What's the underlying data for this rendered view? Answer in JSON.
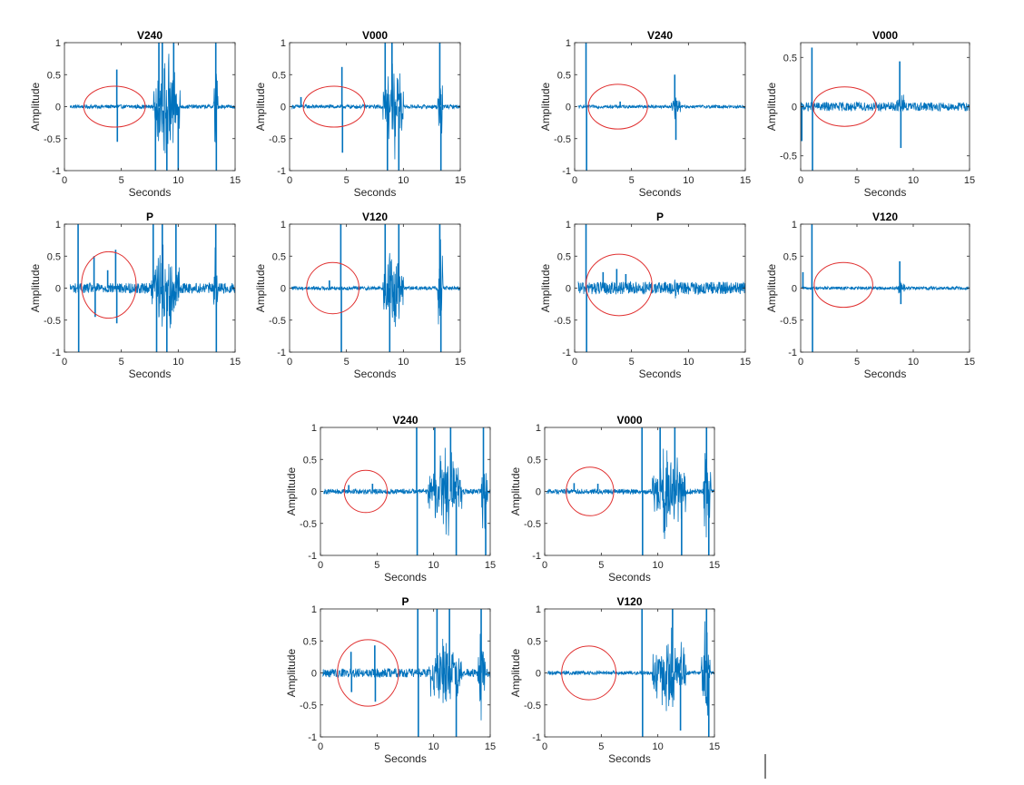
{
  "figure": {
    "wave_color": "#0072BD",
    "circle_color": "#E03030",
    "axis_color": "#262626"
  },
  "chart_data": [
    {
      "type": "line",
      "title": "V240",
      "xlabel": "Seconds",
      "ylabel": "Amplitude",
      "xlim": [
        0,
        15
      ],
      "ylim": [
        -1,
        1
      ],
      "xticks": [
        "0",
        "5",
        "10",
        "15"
      ],
      "yticks": [
        "1",
        "0.5",
        "0",
        "-0.5",
        "-1"
      ],
      "series": [
        {
          "start": 0.5,
          "end": 15,
          "base_amp": 0.03,
          "spikes": [
            [
              4.6,
              0.58
            ],
            [
              4.65,
              -0.55
            ],
            [
              8.0,
              -1
            ],
            [
              8.3,
              1
            ],
            [
              8.6,
              1
            ],
            [
              9.0,
              -1
            ],
            [
              9.6,
              1
            ],
            [
              10.0,
              -1
            ],
            [
              13.3,
              1
            ],
            [
              13.35,
              -1
            ]
          ],
          "bursts": [
            [
              7.8,
              10.2,
              1.0
            ],
            [
              13.1,
              13.5,
              1.0
            ]
          ]
        }
      ],
      "annotations": [
        {
          "type": "ellipse",
          "x": 4.4,
          "y": 0,
          "rx": 2.7,
          "ry": 0.32
        }
      ]
    },
    {
      "type": "line",
      "title": "V000",
      "xlabel": "Seconds",
      "ylabel": "Amplitude",
      "xlim": [
        0,
        15
      ],
      "ylim": [
        -1,
        1
      ],
      "xticks": [
        "0",
        "5",
        "10",
        "15"
      ],
      "yticks": [
        "1",
        "0.5",
        "0",
        "-0.5",
        "-1"
      ],
      "series": [
        {
          "start": 0.2,
          "end": 15,
          "base_amp": 0.03,
          "spikes": [
            [
              1.0,
              0.15
            ],
            [
              4.6,
              0.62
            ],
            [
              4.65,
              -0.72
            ],
            [
              8.4,
              1
            ],
            [
              8.6,
              -1
            ],
            [
              9.0,
              1
            ],
            [
              9.6,
              -1
            ],
            [
              13.2,
              1
            ],
            [
              13.3,
              -1
            ]
          ],
          "bursts": [
            [
              8.2,
              10.0,
              1.0
            ],
            [
              13.0,
              13.5,
              1.0
            ]
          ]
        }
      ],
      "annotations": [
        {
          "type": "ellipse",
          "x": 3.9,
          "y": 0,
          "rx": 2.7,
          "ry": 0.32
        }
      ]
    },
    {
      "type": "line",
      "title": "V240",
      "xlabel": "Seconds",
      "ylabel": "Amplitude",
      "xlim": [
        0,
        15
      ],
      "ylim": [
        -1,
        1
      ],
      "xticks": [
        "0",
        "5",
        "10",
        "15"
      ],
      "yticks": [
        "1",
        "0.5",
        "0",
        "-0.5",
        "-1"
      ],
      "series": [
        {
          "start": 0.3,
          "end": 15,
          "base_amp": 0.025,
          "spikes": [
            [
              1.0,
              1
            ],
            [
              1.05,
              -1
            ],
            [
              8.8,
              0.5
            ],
            [
              8.9,
              -0.52
            ],
            [
              4.0,
              0.08
            ]
          ],
          "bursts": [
            [
              8.5,
              9.3,
              0.25
            ]
          ]
        }
      ],
      "annotations": [
        {
          "type": "ellipse",
          "x": 3.8,
          "y": 0,
          "rx": 2.6,
          "ry": 0.35
        }
      ]
    },
    {
      "type": "line",
      "title": "V000",
      "xlabel": "Seconds",
      "ylabel": "Amplitude",
      "xlim": [
        0,
        15
      ],
      "ylim": [
        -0.65,
        0.65
      ],
      "xticks": [
        "0",
        "5",
        "10",
        "15"
      ],
      "yticks": [
        "0.5",
        "0",
        "-0.5"
      ],
      "series": [
        {
          "start": 0.0,
          "end": 15,
          "base_amp": 0.045,
          "spikes": [
            [
              0.1,
              -0.35
            ],
            [
              1.0,
              0.6
            ],
            [
              1.05,
              -0.65
            ],
            [
              8.8,
              0.46
            ],
            [
              8.9,
              -0.42
            ]
          ],
          "bursts": [
            [
              8.5,
              9.3,
              0.2
            ]
          ]
        }
      ],
      "annotations": [
        {
          "type": "ellipse",
          "x": 3.9,
          "y": 0,
          "rx": 2.8,
          "ry": 0.2
        }
      ]
    },
    {
      "type": "line",
      "title": "P",
      "xlabel": "Seconds",
      "ylabel": "Amplitude",
      "xlim": [
        0,
        15
      ],
      "ylim": [
        -1,
        1
      ],
      "xticks": [
        "0",
        "5",
        "10",
        "15"
      ],
      "yticks": [
        "1",
        "0.5",
        "0",
        "-0.5",
        "-1"
      ],
      "series": [
        {
          "start": 0.5,
          "end": 15,
          "base_amp": 0.08,
          "spikes": [
            [
              1.2,
              1
            ],
            [
              1.25,
              -1
            ],
            [
              2.6,
              0.5
            ],
            [
              2.7,
              -0.45
            ],
            [
              3.8,
              0.28
            ],
            [
              4.5,
              0.6
            ],
            [
              4.6,
              -0.55
            ],
            [
              7.8,
              1
            ],
            [
              8.1,
              -1
            ],
            [
              8.6,
              1
            ],
            [
              9.0,
              -1
            ],
            [
              9.8,
              1
            ],
            [
              13.3,
              1
            ],
            [
              13.35,
              -1
            ]
          ],
          "bursts": [
            [
              7.6,
              10.1,
              1.0
            ],
            [
              13.1,
              13.5,
              1.0
            ]
          ]
        }
      ],
      "annotations": [
        {
          "type": "ellipse",
          "x": 3.9,
          "y": 0.05,
          "rx": 2.4,
          "ry": 0.52
        }
      ]
    },
    {
      "type": "line",
      "title": "V120",
      "xlabel": "Seconds",
      "ylabel": "Amplitude",
      "xlim": [
        0,
        15
      ],
      "ylim": [
        -1,
        1
      ],
      "xticks": [
        "0",
        "5",
        "10",
        "15"
      ],
      "yticks": [
        "1",
        "0.5",
        "0",
        "-0.5",
        "-1"
      ],
      "series": [
        {
          "start": 0.2,
          "end": 15,
          "base_amp": 0.03,
          "spikes": [
            [
              4.5,
              1
            ],
            [
              4.55,
              -1
            ],
            [
              3.5,
              0.12
            ],
            [
              8.4,
              1
            ],
            [
              8.8,
              -1
            ],
            [
              9.6,
              1
            ],
            [
              13.2,
              1
            ],
            [
              13.3,
              -1
            ]
          ],
          "bursts": [
            [
              8.2,
              10.0,
              1.0
            ],
            [
              13.0,
              13.5,
              1.0
            ]
          ]
        }
      ],
      "annotations": [
        {
          "type": "ellipse",
          "x": 3.8,
          "y": 0,
          "rx": 2.3,
          "ry": 0.4
        }
      ]
    },
    {
      "type": "line",
      "title": "P",
      "xlabel": "Seconds",
      "ylabel": "Amplitude",
      "xlim": [
        0,
        15
      ],
      "ylim": [
        -1,
        1
      ],
      "xticks": [
        "0",
        "5",
        "10",
        "15"
      ],
      "yticks": [
        "1",
        "0.5",
        "0",
        "-0.5",
        "-1"
      ],
      "series": [
        {
          "start": 0.3,
          "end": 15,
          "base_amp": 0.1,
          "spikes": [
            [
              1.0,
              1
            ],
            [
              1.05,
              -1
            ],
            [
              2.5,
              0.25
            ],
            [
              3.7,
              0.3
            ],
            [
              4.5,
              0.22
            ]
          ],
          "bursts": [
            [
              8.5,
              9.2,
              0.2
            ]
          ]
        }
      ],
      "annotations": [
        {
          "type": "ellipse",
          "x": 3.9,
          "y": 0.05,
          "rx": 2.9,
          "ry": 0.48
        }
      ]
    },
    {
      "type": "line",
      "title": "V120",
      "xlabel": "Seconds",
      "ylabel": "Amplitude",
      "xlim": [
        0,
        15
      ],
      "ylim": [
        -1,
        1
      ],
      "xticks": [
        "0",
        "5",
        "10",
        "15"
      ],
      "yticks": [
        "1",
        "0.5",
        "0",
        "-0.5",
        "-1"
      ],
      "series": [
        {
          "start": 0.1,
          "end": 15,
          "base_amp": 0.025,
          "spikes": [
            [
              0.2,
              0.25
            ],
            [
              1.0,
              1
            ],
            [
              1.05,
              -1
            ],
            [
              8.8,
              0.42
            ],
            [
              8.9,
              -0.25
            ]
          ],
          "bursts": [
            [
              8.5,
              9.3,
              0.15
            ]
          ]
        }
      ],
      "annotations": [
        {
          "type": "ellipse",
          "x": 3.8,
          "y": 0.05,
          "rx": 2.6,
          "ry": 0.35
        }
      ]
    },
    {
      "type": "line",
      "title": "V240",
      "xlabel": "Seconds",
      "ylabel": "Amplitude",
      "xlim": [
        0,
        15
      ],
      "ylim": [
        -1,
        1
      ],
      "xticks": [
        "0",
        "5",
        "10",
        "15"
      ],
      "yticks": [
        "1",
        "0.5",
        "0",
        "-0.5",
        "-1"
      ],
      "series": [
        {
          "start": 0.3,
          "end": 15,
          "base_amp": 0.04,
          "spikes": [
            [
              2.5,
              0.1
            ],
            [
              4.6,
              0.12
            ],
            [
              8.5,
              1
            ],
            [
              8.55,
              -1
            ],
            [
              10.1,
              1
            ],
            [
              11.5,
              1
            ],
            [
              12.0,
              -1
            ],
            [
              14.4,
              1
            ],
            [
              14.6,
              -1
            ]
          ],
          "bursts": [
            [
              9.5,
              12.5,
              0.85
            ],
            [
              14.2,
              14.8,
              1.0
            ]
          ]
        }
      ],
      "annotations": [
        {
          "type": "ellipse",
          "x": 4.0,
          "y": 0,
          "rx": 1.9,
          "ry": 0.33
        }
      ]
    },
    {
      "type": "line",
      "title": "V000",
      "xlabel": "Seconds",
      "ylabel": "Amplitude",
      "xlim": [
        0,
        15
      ],
      "ylim": [
        -1,
        1
      ],
      "xticks": [
        "0",
        "5",
        "10",
        "15"
      ],
      "yticks": [
        "1",
        "0.5",
        "0",
        "-0.5",
        "-1"
      ],
      "series": [
        {
          "start": 0.2,
          "end": 15,
          "base_amp": 0.04,
          "spikes": [
            [
              2.6,
              0.13
            ],
            [
              4.7,
              0.12
            ],
            [
              8.6,
              1
            ],
            [
              8.65,
              -1
            ],
            [
              10.2,
              1
            ],
            [
              11.5,
              1
            ],
            [
              12.1,
              -1
            ],
            [
              14.3,
              1
            ],
            [
              14.5,
              -1
            ]
          ],
          "bursts": [
            [
              9.5,
              12.5,
              0.9
            ],
            [
              14.0,
              14.7,
              1.0
            ]
          ]
        }
      ],
      "annotations": [
        {
          "type": "ellipse",
          "x": 4.0,
          "y": 0,
          "rx": 2.1,
          "ry": 0.38
        }
      ]
    },
    {
      "type": "line",
      "title": "P",
      "xlabel": "Seconds",
      "ylabel": "Amplitude",
      "xlim": [
        0,
        15
      ],
      "ylim": [
        -1,
        1
      ],
      "xticks": [
        "0",
        "5",
        "10",
        "15"
      ],
      "yticks": [
        "1",
        "0.5",
        "0",
        "-0.5",
        "-1"
      ],
      "series": [
        {
          "start": 0.2,
          "end": 15,
          "base_amp": 0.07,
          "spikes": [
            [
              2.7,
              0.33
            ],
            [
              2.75,
              -0.3
            ],
            [
              4.8,
              0.43
            ],
            [
              4.85,
              -0.45
            ],
            [
              8.6,
              1
            ],
            [
              8.65,
              -1
            ],
            [
              10.3,
              1
            ],
            [
              11.4,
              1
            ],
            [
              12.0,
              -1
            ],
            [
              14.2,
              1
            ]
          ],
          "bursts": [
            [
              9.5,
              12.5,
              0.75
            ],
            [
              13.9,
              14.6,
              1.0
            ]
          ]
        }
      ],
      "annotations": [
        {
          "type": "ellipse",
          "x": 4.2,
          "y": 0,
          "rx": 2.7,
          "ry": 0.52
        }
      ]
    },
    {
      "type": "line",
      "title": "V120",
      "xlabel": "Seconds",
      "ylabel": "Amplitude",
      "xlim": [
        0,
        15
      ],
      "ylim": [
        -1,
        1
      ],
      "xticks": [
        "0",
        "5",
        "10",
        "15"
      ],
      "yticks": [
        "1",
        "0.5",
        "0",
        "-0.5",
        "-1"
      ],
      "series": [
        {
          "start": 0.3,
          "end": 15,
          "base_amp": 0.03,
          "spikes": [
            [
              8.6,
              1
            ],
            [
              8.65,
              -1
            ],
            [
              11.3,
              1
            ],
            [
              12.0,
              -0.9
            ],
            [
              14.3,
              1
            ],
            [
              14.5,
              -1
            ]
          ],
          "bursts": [
            [
              9.5,
              12.5,
              0.9
            ],
            [
              13.8,
              14.6,
              1.0
            ]
          ]
        }
      ],
      "annotations": [
        {
          "type": "ellipse",
          "x": 3.9,
          "y": 0,
          "rx": 2.4,
          "ry": 0.42
        }
      ]
    }
  ]
}
